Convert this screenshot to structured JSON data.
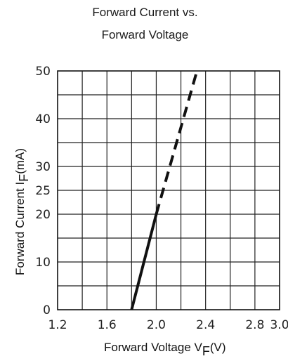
{
  "chart_data": {
    "type": "line",
    "title": [
      "Forward Current vs.",
      "Forward Voltage"
    ],
    "xlabel": {
      "main": "Forward Voltage  V",
      "sub": "F",
      "unit": "(V)"
    },
    "ylabel": {
      "main": "Forward Current I",
      "sub": "F",
      "unit": "(mA)"
    },
    "xlim": [
      1.2,
      3.0
    ],
    "ylim": [
      0,
      50
    ],
    "x_ticks": [
      "1.2",
      "1.6",
      "2.0",
      "2.4",
      "2.8",
      "3.0"
    ],
    "x_tick_values": [
      1.2,
      1.6,
      2.0,
      2.4,
      2.8,
      3.0
    ],
    "y_ticks": [
      "0",
      "10",
      "20",
      "25",
      "30",
      "40",
      "50"
    ],
    "y_tick_values": [
      0,
      10,
      20,
      25,
      30,
      40,
      50
    ],
    "x_grid_step": 0.2,
    "y_grid_step": 5,
    "grid": true,
    "series": [
      {
        "style": "solid",
        "color": "#111111",
        "points": [
          [
            1.8,
            0
          ],
          [
            2.0,
            20
          ]
        ]
      },
      {
        "style": "dashed",
        "color": "#111111",
        "points": [
          [
            2.0,
            20
          ],
          [
            2.33,
            50
          ]
        ]
      }
    ]
  }
}
